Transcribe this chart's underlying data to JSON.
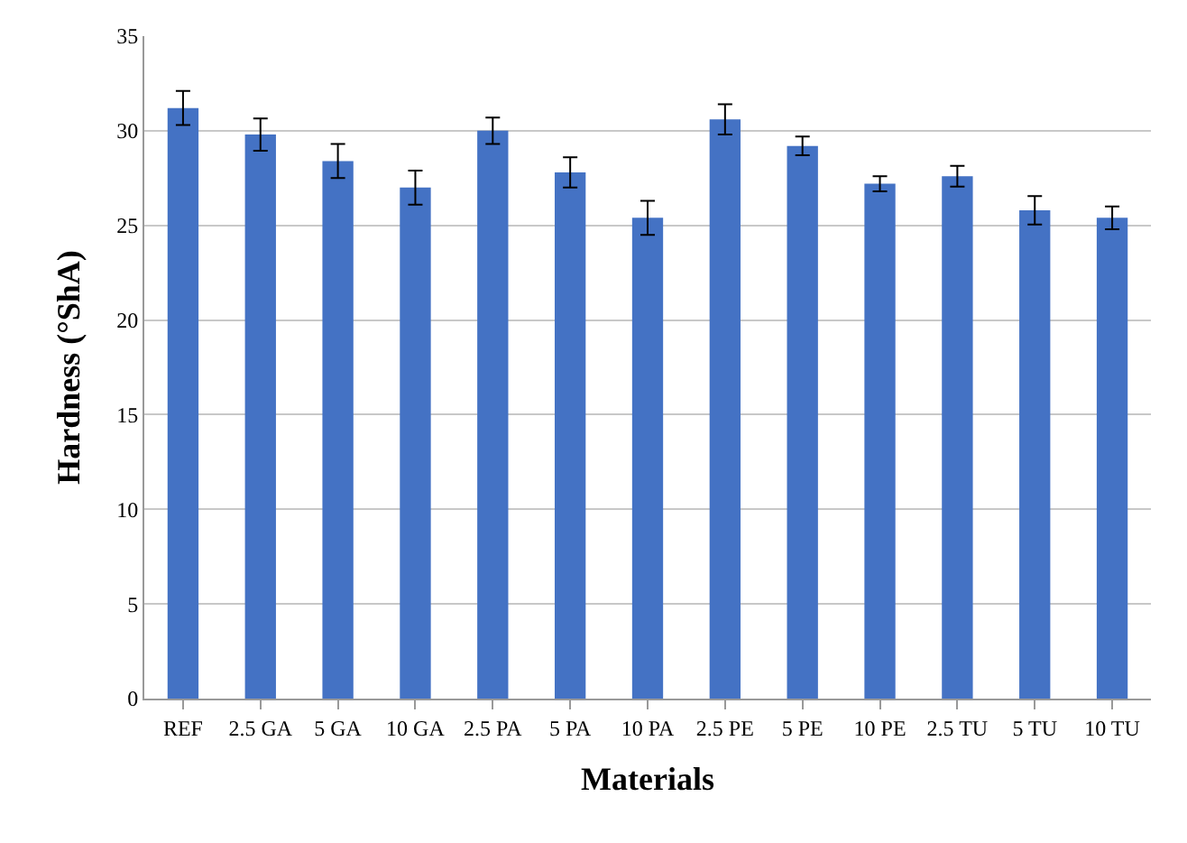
{
  "chart_data": {
    "type": "bar",
    "xlabel": "Materials",
    "ylabel": "Hardness (°ShA)",
    "categories": [
      "REF",
      "2.5 GA",
      "5 GA",
      "10 GA",
      "2.5 PA",
      "5 PA",
      "10 PA",
      "2.5 PE",
      "5 PE",
      "10 PE",
      "2.5 TU",
      "5 TU",
      "10 TU"
    ],
    "values": [
      31.2,
      29.8,
      28.4,
      27.0,
      30.0,
      27.8,
      25.4,
      30.6,
      29.2,
      27.2,
      27.6,
      25.8,
      25.4
    ],
    "errors": [
      0.9,
      0.85,
      0.9,
      0.9,
      0.7,
      0.8,
      0.9,
      0.8,
      0.5,
      0.4,
      0.55,
      0.75,
      0.6
    ],
    "color": "#4472c4",
    "ylim": [
      0,
      35
    ],
    "yticks": [
      0,
      5,
      10,
      15,
      20,
      25,
      30,
      35
    ],
    "grid": "y"
  }
}
